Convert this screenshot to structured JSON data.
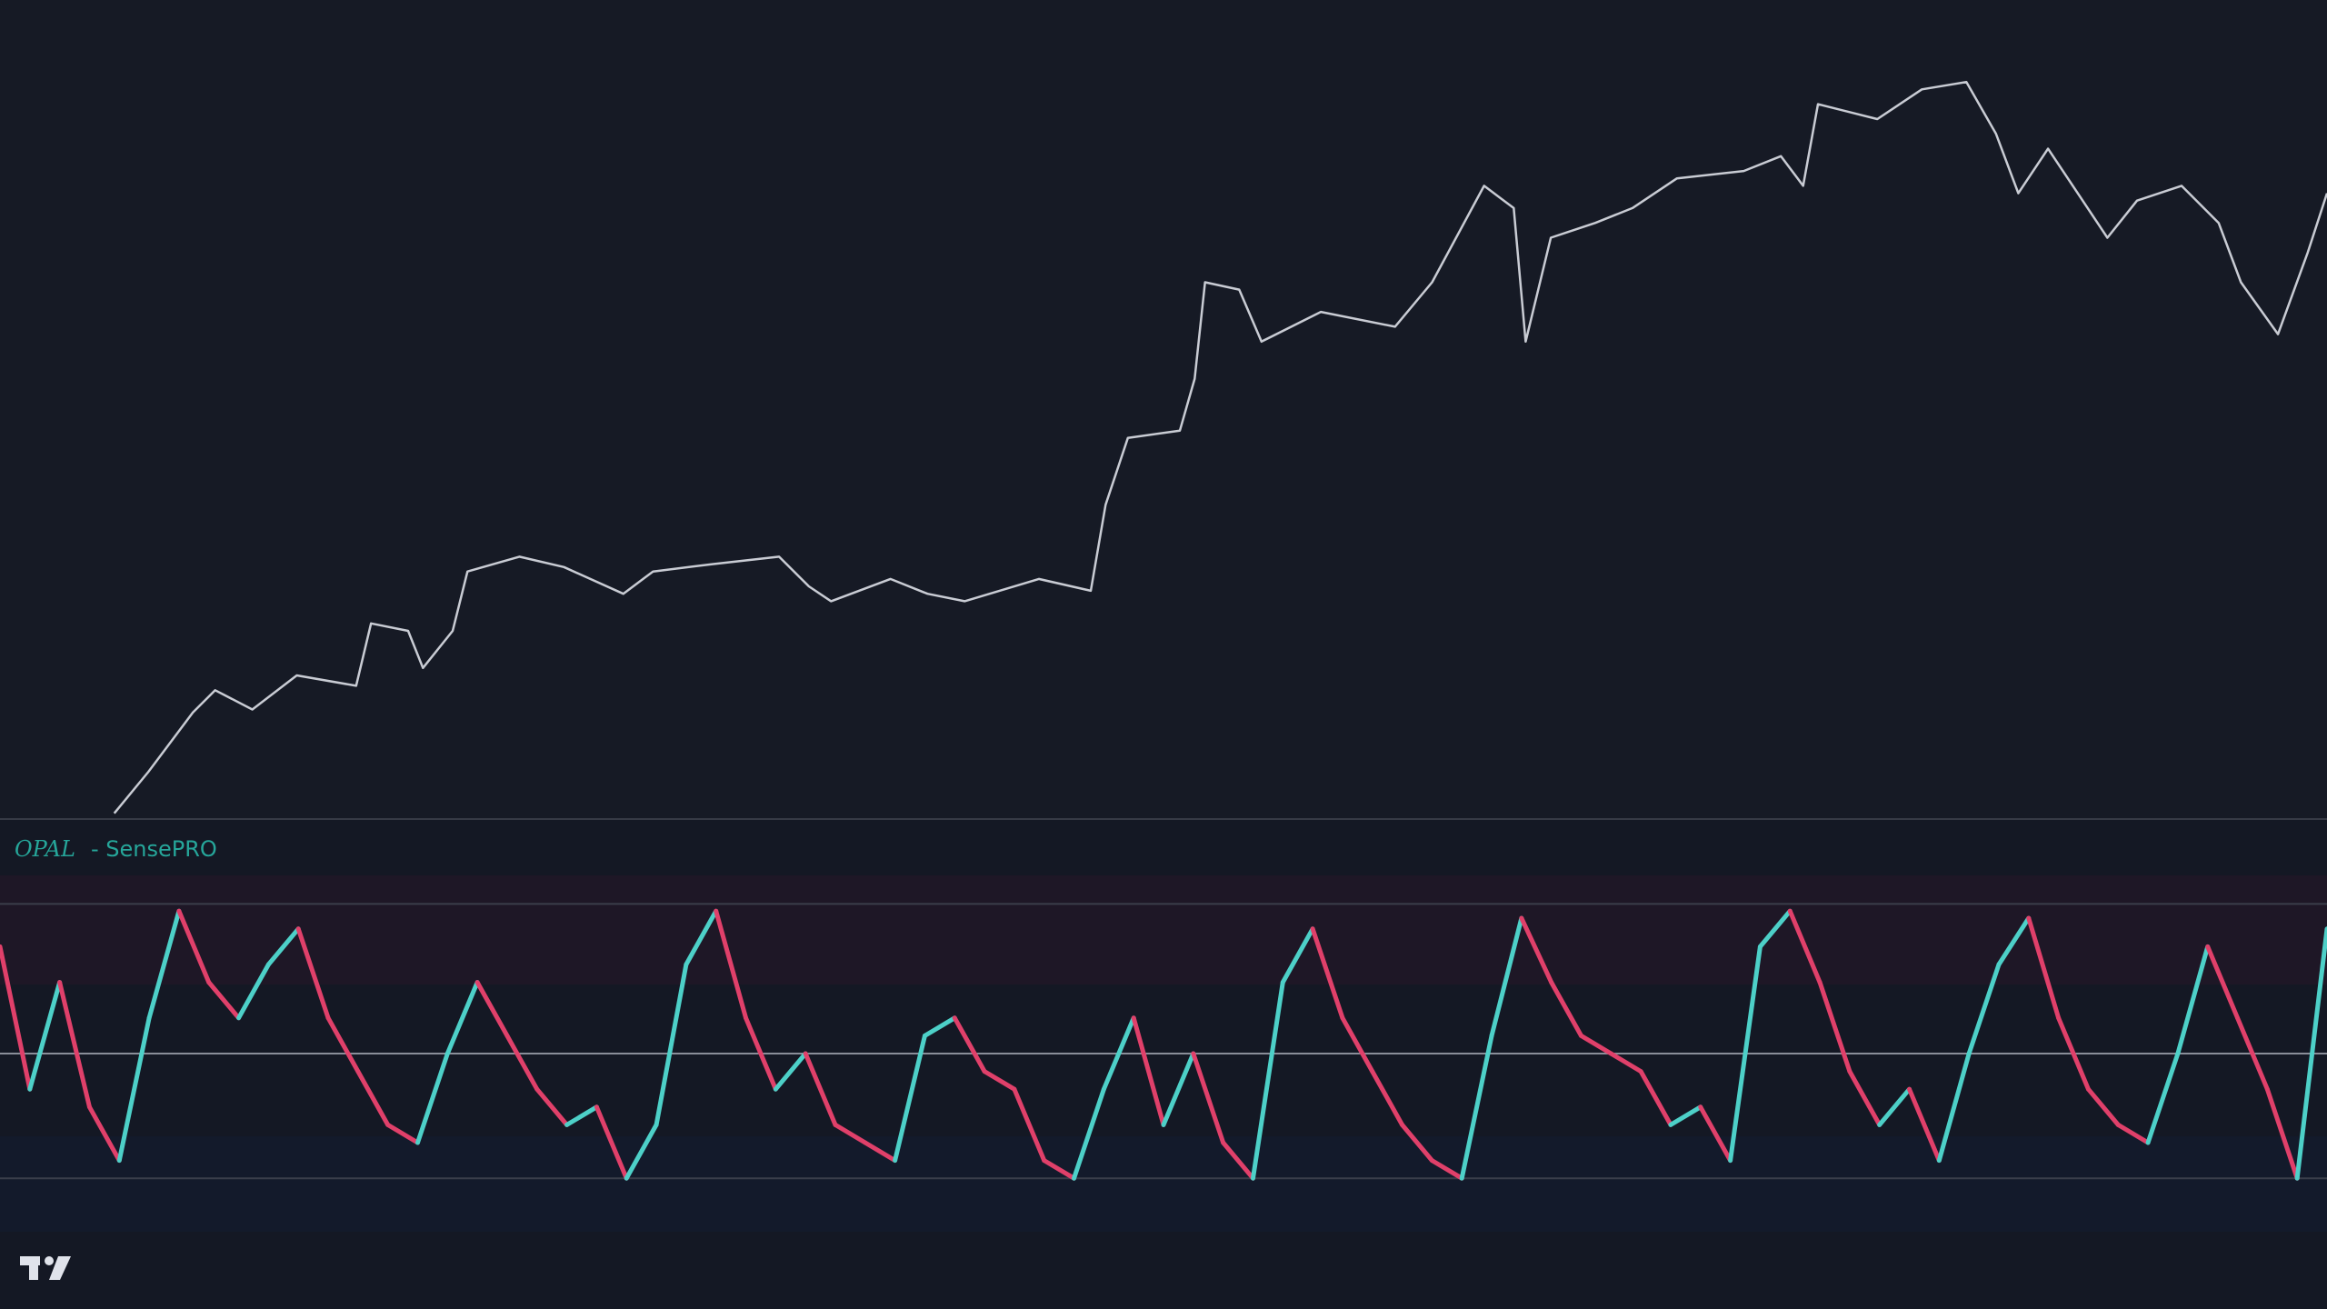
{
  "chart_data": [
    {
      "type": "line",
      "color": "#c9ccd4",
      "x": [
        77,
        100,
        130,
        145,
        170,
        200,
        240,
        250,
        275,
        285,
        305,
        315,
        350,
        380,
        420,
        440,
        480,
        525,
        545,
        560,
        600,
        625,
        650,
        700,
        735,
        745,
        760,
        795,
        805,
        812,
        835,
        850,
        890,
        940,
        965,
        1000,
        1020,
        1028,
        1045,
        1075,
        1100,
        1130,
        1175,
        1200,
        1215,
        1225,
        1265,
        1295,
        1325,
        1345,
        1360,
        1380,
        1420,
        1440,
        1470,
        1495,
        1510,
        1535,
        1555,
        1568
      ],
      "values": [
        2,
        30,
        70,
        85,
        72,
        95,
        88,
        130,
        125,
        100,
        125,
        165,
        175,
        168,
        150,
        165,
        170,
        175,
        155,
        145,
        160,
        150,
        145,
        160,
        152,
        210,
        255,
        260,
        295,
        360,
        355,
        320,
        340,
        330,
        360,
        425,
        410,
        320,
        390,
        400,
        410,
        430,
        435,
        445,
        425,
        480,
        470,
        490,
        495,
        460,
        420,
        450,
        390,
        415,
        425,
        400,
        360,
        325,
        380,
        420
      ],
      "xlim": [
        0,
        1568
      ],
      "ylim": [
        0,
        500
      ]
    },
    {
      "type": "oscillator",
      "title_brand": "OPAL",
      "title": "- SensePRO",
      "rise_color": "#4dd0c8",
      "fall_color": "#e0406a",
      "values": [
        80,
        40,
        70,
        35,
        20,
        60,
        90,
        70,
        60,
        75,
        85,
        60,
        45,
        30,
        25,
        50,
        70,
        55,
        40,
        30,
        35,
        15,
        30,
        75,
        90,
        60,
        40,
        50,
        30,
        25,
        20,
        55,
        60,
        45,
        40,
        20,
        15,
        40,
        60,
        30,
        50,
        25,
        15,
        70,
        85,
        60,
        45,
        30,
        20,
        15,
        55,
        88,
        70,
        55,
        50,
        45,
        30,
        35,
        20,
        80,
        90,
        70,
        45,
        30,
        40,
        20,
        50,
        75,
        88,
        60,
        40,
        30,
        25,
        50,
        80,
        60,
        40,
        15,
        85
      ],
      "ylim": [
        0,
        100
      ],
      "levels": [
        92,
        50,
        15
      ]
    }
  ]
}
